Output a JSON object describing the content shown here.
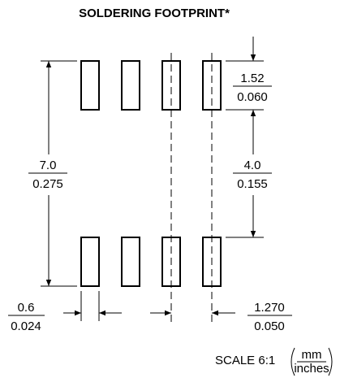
{
  "title": "SOLDERING FOOTPRINT*",
  "dimensions": {
    "overall_height": {
      "mm": "7.0",
      "inches": "0.275"
    },
    "pad_length": {
      "mm": "1.52",
      "inches": "0.060"
    },
    "gap": {
      "mm": "4.0",
      "inches": "0.155"
    },
    "pad_width": {
      "mm": "0.6",
      "inches": "0.024"
    },
    "pitch": {
      "mm": "1.270",
      "inches": "0.050"
    }
  },
  "scale": "SCALE 6:1",
  "units": {
    "top": "mm",
    "bottom": "inches"
  }
}
